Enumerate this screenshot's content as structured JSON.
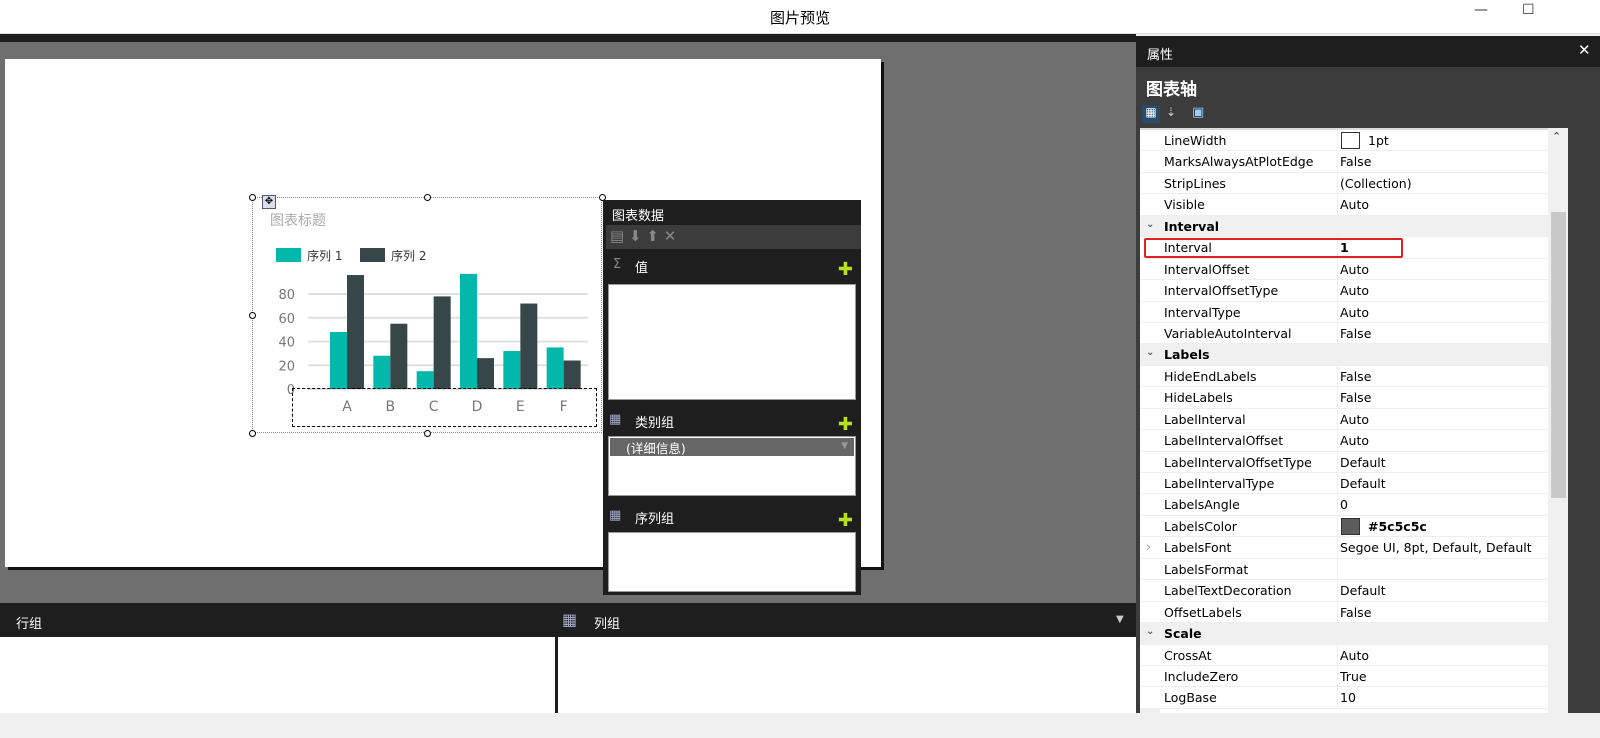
{
  "window": {
    "title": "图片预览",
    "minimize": "—",
    "maximize": "☐"
  },
  "chart": {
    "title": "图表标题",
    "chart_data": {
      "type": "bar",
      "title": "图表标题",
      "categories": [
        "A",
        "B",
        "C",
        "D",
        "E",
        "F"
      ],
      "series": [
        {
          "name": "序列 1",
          "color": "#01b8aa",
          "values": [
            48,
            28,
            15,
            97,
            32,
            35
          ]
        },
        {
          "name": "序列 2",
          "color": "#374649",
          "values": [
            96,
            55,
            78,
            26,
            72,
            24
          ]
        }
      ],
      "yticks": [
        "0",
        "20",
        "40",
        "60",
        "80"
      ],
      "ylim": [
        0,
        100
      ],
      "grid": true,
      "legend": "top-left"
    }
  },
  "chart_data_panel": {
    "title": "图表数据",
    "values_label": "值",
    "category_label": "类别组",
    "category_item": "(详细信息)",
    "series_label": "序列组"
  },
  "bottom": {
    "row_groups": "行组",
    "col_groups": "列组"
  },
  "properties": {
    "header": "属性",
    "close": "✕",
    "object": "图表轴",
    "rows": [
      {
        "name": "LineWidth",
        "value": "1pt"
      },
      {
        "name": "MarksAlwaysAtPlotEdge",
        "value": "False"
      },
      {
        "name": "StripLines",
        "value": "(Collection)"
      },
      {
        "name": "Visible",
        "value": "Auto"
      },
      {
        "name": "Interval",
        "value": "",
        "category": true
      },
      {
        "name": "Interval",
        "value": "1",
        "highlight": true
      },
      {
        "name": "IntervalOffset",
        "value": "Auto"
      },
      {
        "name": "IntervalOffsetType",
        "value": "Auto"
      },
      {
        "name": "IntervalType",
        "value": "Auto"
      },
      {
        "name": "VariableAutoInterval",
        "value": "False"
      },
      {
        "name": "Labels",
        "value": "",
        "category": true
      },
      {
        "name": "HideEndLabels",
        "value": "False"
      },
      {
        "name": "HideLabels",
        "value": "False"
      },
      {
        "name": "LabelInterval",
        "value": "Auto"
      },
      {
        "name": "LabelIntervalOffset",
        "value": "Auto"
      },
      {
        "name": "LabelIntervalOffsetType",
        "value": "Default"
      },
      {
        "name": "LabelIntervalType",
        "value": "Default"
      },
      {
        "name": "LabelsAngle",
        "value": "0"
      },
      {
        "name": "LabelsColor",
        "value": "#5c5c5c",
        "swatch": "#5c5c5c"
      },
      {
        "name": "LabelsFont",
        "value": "Segoe UI, 8pt, Default, Default",
        "expandable": true
      },
      {
        "name": "LabelsFormat",
        "value": ""
      },
      {
        "name": "LabelTextDecoration",
        "value": "Default"
      },
      {
        "name": "OffsetLabels",
        "value": "False"
      },
      {
        "name": "Scale",
        "value": "",
        "category": true
      },
      {
        "name": "CrossAt",
        "value": "Auto"
      },
      {
        "name": "IncludeZero",
        "value": "True"
      },
      {
        "name": "LogBase",
        "value": "10"
      }
    ]
  }
}
